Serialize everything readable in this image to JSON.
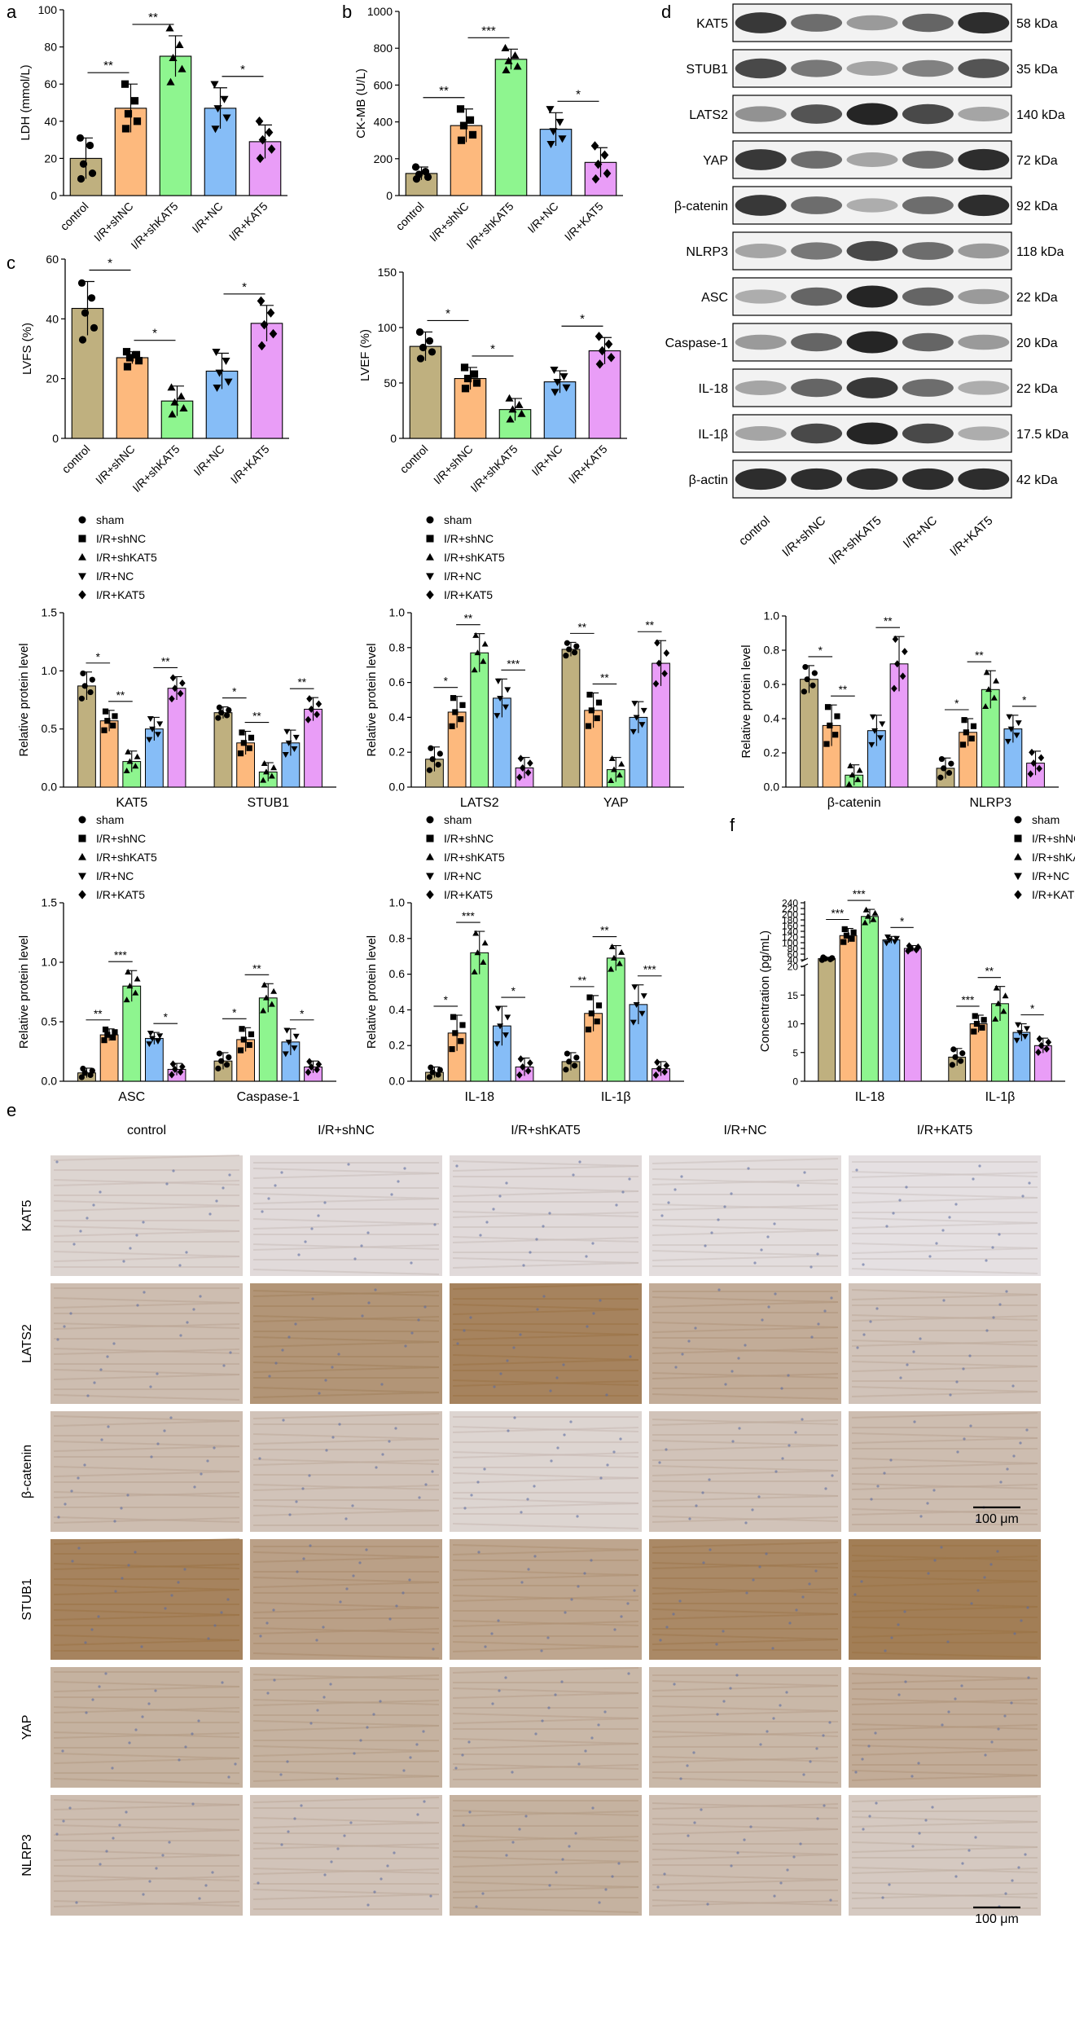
{
  "colors": {
    "control": "#bfb07f",
    "shNC": "#fdb97d",
    "shKAT5": "#8ef58f",
    "NC": "#86bdf7",
    "KAT5": "#e99df7",
    "blot_bg": "#f2f2f2",
    "blot_band": "#1c1c1c",
    "ihc_brown": "#9a7245",
    "ihc_blue": "#cdd2e2"
  },
  "panel_labels": {
    "a": "a",
    "b": "b",
    "c": "c",
    "d": "d",
    "e": "e",
    "f": "f"
  },
  "groups5": [
    "control",
    "I/R+shNC",
    "I/R+shKAT5",
    "I/R+NC",
    "I/R+KAT5"
  ],
  "legend_labels": [
    "sham",
    "I/R+shNC",
    "I/R+shKAT5",
    "I/R+NC",
    "I/R+KAT5"
  ],
  "blot": {
    "proteins": [
      "KAT5",
      "STUB1",
      "LATS2",
      "YAP",
      "β-catenin",
      "NLRP3",
      "ASC",
      "Caspase-1",
      "IL-18",
      "IL-1β",
      "β-actin"
    ],
    "sizes": [
      "58 kDa",
      "35 kDa",
      "140 kDa",
      "72 kDa",
      "92 kDa",
      "118 kDa",
      "22 kDa",
      "20 kDa",
      "22 kDa",
      "17.5 kDa",
      "42 kDa"
    ],
    "intensity": [
      [
        0.85,
        0.55,
        0.3,
        0.6,
        0.9
      ],
      [
        0.75,
        0.5,
        0.25,
        0.45,
        0.7
      ],
      [
        0.35,
        0.7,
        0.95,
        0.75,
        0.25
      ],
      [
        0.85,
        0.55,
        0.25,
        0.55,
        0.9
      ],
      [
        0.85,
        0.55,
        0.2,
        0.55,
        0.9
      ],
      [
        0.25,
        0.5,
        0.75,
        0.55,
        0.3
      ],
      [
        0.2,
        0.6,
        0.95,
        0.6,
        0.3
      ],
      [
        0.3,
        0.6,
        0.95,
        0.6,
        0.3
      ],
      [
        0.25,
        0.6,
        0.85,
        0.55,
        0.2
      ],
      [
        0.25,
        0.75,
        0.95,
        0.75,
        0.2
      ],
      [
        0.9,
        0.9,
        0.9,
        0.9,
        0.9
      ]
    ]
  },
  "ihc": {
    "columns": [
      "control",
      "I/R+shNC",
      "I/R+shKAT5",
      "I/R+NC",
      "I/R+KAT5"
    ],
    "rows": [
      "KAT5",
      "LATS2",
      "β-catenin",
      "STUB1",
      "YAP",
      "NLRP3"
    ],
    "brown_level": [
      [
        0.15,
        0.1,
        0.1,
        0.08,
        0.05
      ],
      [
        0.35,
        0.7,
        0.85,
        0.5,
        0.3
      ],
      [
        0.35,
        0.3,
        0.15,
        0.3,
        0.35
      ],
      [
        0.85,
        0.6,
        0.55,
        0.8,
        0.9
      ],
      [
        0.45,
        0.45,
        0.4,
        0.4,
        0.5
      ],
      [
        0.35,
        0.3,
        0.45,
        0.35,
        0.25
      ]
    ],
    "scale_bar": "100 μm"
  },
  "chart_data": [
    {
      "id": "a",
      "type": "bar",
      "ylabel": "LDH (mmol/L)",
      "ylim": [
        0,
        100
      ],
      "yticks": [
        0,
        20,
        40,
        60,
        80,
        100
      ],
      "categories": [
        "control",
        "I/R+shNC",
        "I/R+shKAT5",
        "I/R+NC",
        "I/R+KAT5"
      ],
      "values": [
        20,
        47,
        75,
        47,
        29
      ],
      "errors": [
        11,
        13,
        11,
        11,
        9
      ],
      "points": [
        [
          31,
          27,
          17,
          12,
          9
        ],
        [
          60,
          51,
          44,
          40,
          36
        ],
        [
          90,
          81,
          74,
          68,
          61
        ],
        [
          60,
          52,
          47,
          42,
          36
        ],
        [
          40,
          34,
          30,
          25,
          20
        ]
      ],
      "sig": [
        {
          "from": 0,
          "to": 1,
          "label": "**"
        },
        {
          "from": 1,
          "to": 2,
          "label": "**"
        },
        {
          "from": 3,
          "to": 4,
          "label": "*"
        }
      ]
    },
    {
      "id": "b",
      "type": "bar",
      "ylabel": "CK-MB (U/L)",
      "ylim": [
        0,
        1000
      ],
      "yticks": [
        0,
        200,
        400,
        600,
        800,
        1000
      ],
      "categories": [
        "control",
        "I/R+shNC",
        "I/R+shKAT5",
        "I/R+NC",
        "I/R+KAT5"
      ],
      "values": [
        120,
        380,
        740,
        360,
        180
      ],
      "errors": [
        35,
        90,
        55,
        90,
        80
      ],
      "points": [
        [
          155,
          130,
          115,
          100,
          90
        ],
        [
          470,
          410,
          380,
          330,
          300
        ],
        [
          800,
          760,
          730,
          700,
          680
        ],
        [
          470,
          400,
          350,
          310,
          280
        ],
        [
          270,
          220,
          170,
          120,
          90
        ]
      ],
      "sig": [
        {
          "from": 0,
          "to": 1,
          "label": "**"
        },
        {
          "from": 1,
          "to": 2,
          "label": "***"
        },
        {
          "from": 3,
          "to": 4,
          "label": "*"
        }
      ]
    },
    {
      "id": "c1",
      "type": "bar",
      "ylabel": "LVFS (%)",
      "ylim": [
        0,
        60
      ],
      "yticks": [
        0,
        20,
        40,
        60
      ],
      "categories": [
        "control",
        "I/R+shNC",
        "I/R+shKAT5",
        "I/R+NC",
        "I/R+KAT5"
      ],
      "values": [
        43.5,
        27,
        12.5,
        22.5,
        38.5
      ],
      "errors": [
        9,
        2,
        5,
        6,
        6
      ],
      "points": [
        [
          52,
          47,
          42,
          37,
          33
        ],
        [
          29,
          28,
          27,
          26,
          24
        ],
        [
          17,
          14,
          12,
          10,
          8
        ],
        [
          29,
          26,
          22,
          19,
          17
        ],
        [
          46,
          42,
          38,
          35,
          31
        ]
      ],
      "sig": [
        {
          "from": 0,
          "to": 1,
          "label": "*"
        },
        {
          "from": 1,
          "to": 2,
          "label": "*"
        },
        {
          "from": 3,
          "to": 4,
          "label": "*"
        }
      ]
    },
    {
      "id": "c2",
      "type": "bar",
      "ylabel": "LVEF (%)",
      "ylim": [
        0,
        150
      ],
      "yticks": [
        0,
        50,
        100,
        150
      ],
      "categories": [
        "control",
        "I/R+shNC",
        "I/R+shKAT5",
        "I/R+NC",
        "I/R+KAT5"
      ],
      "values": [
        83,
        54,
        26,
        51,
        79
      ],
      "errors": [
        13,
        10,
        10,
        10,
        12
      ],
      "points": [
        [
          96,
          88,
          82,
          78,
          72
        ],
        [
          64,
          58,
          54,
          50,
          45
        ],
        [
          36,
          30,
          26,
          22,
          17
        ],
        [
          62,
          56,
          51,
          46,
          42
        ],
        [
          92,
          85,
          79,
          73,
          67
        ]
      ],
      "sig": [
        {
          "from": 0,
          "to": 1,
          "label": "*"
        },
        {
          "from": 1,
          "to": 2,
          "label": "*"
        },
        {
          "from": 3,
          "to": 4,
          "label": "*"
        }
      ]
    },
    {
      "id": "d1",
      "type": "bar",
      "ylabel": "Relative protein level",
      "ylim": [
        0,
        1.5
      ],
      "yticks": [
        0,
        0.5,
        1.0,
        1.5
      ],
      "tick_labels": [
        "0.0",
        "0.5",
        "1.0",
        "1.5"
      ],
      "categories": [
        "KAT5",
        "STUB1"
      ],
      "series": [
        {
          "name": "sham",
          "values": [
            0.87,
            0.64
          ],
          "errors": [
            0.12,
            0.05
          ]
        },
        {
          "name": "I/R+shNC",
          "values": [
            0.57,
            0.38
          ],
          "errors": [
            0.09,
            0.1
          ]
        },
        {
          "name": "I/R+shKAT5",
          "values": [
            0.22,
            0.13
          ],
          "errors": [
            0.09,
            0.08
          ]
        },
        {
          "name": "I/R+NC",
          "values": [
            0.5,
            0.38
          ],
          "errors": [
            0.1,
            0.11
          ]
        },
        {
          "name": "I/R+KAT5",
          "values": [
            0.85,
            0.67
          ],
          "errors": [
            0.1,
            0.1
          ]
        }
      ],
      "sig": [
        [
          {
            "from": 0,
            "to": 1,
            "label": "*"
          },
          {
            "from": 1,
            "to": 2,
            "label": "**"
          },
          {
            "from": 3,
            "to": 4,
            "label": "**"
          }
        ],
        [
          {
            "from": 0,
            "to": 1,
            "label": "*"
          },
          {
            "from": 1,
            "to": 2,
            "label": "**"
          },
          {
            "from": 3,
            "to": 4,
            "label": "**"
          }
        ]
      ]
    },
    {
      "id": "d2",
      "type": "bar",
      "ylabel": "Relative protein level",
      "ylim": [
        0,
        1.0
      ],
      "yticks": [
        0,
        0.2,
        0.4,
        0.6,
        0.8,
        1.0
      ],
      "tick_labels": [
        "0.0",
        "0.2",
        "0.4",
        "0.6",
        "0.8",
        "1.0"
      ],
      "categories": [
        "LATS2",
        "YAP"
      ],
      "series": [
        {
          "name": "sham",
          "values": [
            0.16,
            0.79
          ],
          "errors": [
            0.07,
            0.04
          ]
        },
        {
          "name": "I/R+shNC",
          "values": [
            0.43,
            0.44
          ],
          "errors": [
            0.09,
            0.1
          ]
        },
        {
          "name": "I/R+shKAT5",
          "values": [
            0.77,
            0.1
          ],
          "errors": [
            0.11,
            0.07
          ]
        },
        {
          "name": "I/R+NC",
          "values": [
            0.51,
            0.4
          ],
          "errors": [
            0.11,
            0.09
          ]
        },
        {
          "name": "I/R+KAT5",
          "values": [
            0.11,
            0.71
          ],
          "errors": [
            0.06,
            0.13
          ]
        }
      ],
      "sig": [
        [
          {
            "from": 0,
            "to": 1,
            "label": "*"
          },
          {
            "from": 1,
            "to": 2,
            "label": "**"
          },
          {
            "from": 3,
            "to": 4,
            "label": "***"
          }
        ],
        [
          {
            "from": 0,
            "to": 1,
            "label": "**"
          },
          {
            "from": 1,
            "to": 2,
            "label": "**"
          },
          {
            "from": 3,
            "to": 4,
            "label": "**"
          }
        ]
      ]
    },
    {
      "id": "d3",
      "type": "bar",
      "ylabel": "Relative protein level",
      "ylim": [
        0,
        1.0
      ],
      "yticks": [
        0,
        0.2,
        0.4,
        0.6,
        0.8,
        1.0
      ],
      "tick_labels": [
        "0.0",
        "0.2",
        "0.4",
        "0.6",
        "0.8",
        "1.0"
      ],
      "categories": [
        "β-catenin",
        "NLRP3"
      ],
      "series": [
        {
          "name": "sham",
          "values": [
            0.63,
            0.11
          ],
          "errors": [
            0.08,
            0.06
          ]
        },
        {
          "name": "I/R+shNC",
          "values": [
            0.36,
            0.32
          ],
          "errors": [
            0.12,
            0.08
          ]
        },
        {
          "name": "I/R+shKAT5",
          "values": [
            0.07,
            0.57
          ],
          "errors": [
            0.06,
            0.11
          ]
        },
        {
          "name": "I/R+NC",
          "values": [
            0.33,
            0.34
          ],
          "errors": [
            0.09,
            0.08
          ]
        },
        {
          "name": "I/R+KAT5",
          "values": [
            0.72,
            0.14
          ],
          "errors": [
            0.16,
            0.07
          ]
        }
      ],
      "sig": [
        [
          {
            "from": 0,
            "to": 1,
            "label": "*"
          },
          {
            "from": 1,
            "to": 2,
            "label": "**"
          },
          {
            "from": 3,
            "to": 4,
            "label": "**"
          }
        ],
        [
          {
            "from": 0,
            "to": 1,
            "label": "*"
          },
          {
            "from": 1,
            "to": 2,
            "label": "**"
          },
          {
            "from": 3,
            "to": 4,
            "label": "*"
          }
        ]
      ]
    },
    {
      "id": "d4",
      "type": "bar",
      "ylabel": "Relative protein level",
      "ylim": [
        0,
        1.5
      ],
      "yticks": [
        0,
        0.5,
        1.0,
        1.5
      ],
      "tick_labels": [
        "0.0",
        "0.5",
        "1.0",
        "1.5"
      ],
      "categories": [
        "ASC",
        "Caspase-1"
      ],
      "series": [
        {
          "name": "sham",
          "values": [
            0.07,
            0.17
          ],
          "errors": [
            0.04,
            0.07
          ]
        },
        {
          "name": "I/R+shNC",
          "values": [
            0.39,
            0.35
          ],
          "errors": [
            0.05,
            0.1
          ]
        },
        {
          "name": "I/R+shKAT5",
          "values": [
            0.8,
            0.7
          ],
          "errors": [
            0.13,
            0.12
          ]
        },
        {
          "name": "I/R+NC",
          "values": [
            0.36,
            0.33
          ],
          "errors": [
            0.05,
            0.11
          ]
        },
        {
          "name": "I/R+KAT5",
          "values": [
            0.1,
            0.12
          ],
          "errors": [
            0.05,
            0.05
          ]
        }
      ],
      "sig": [
        [
          {
            "from": 0,
            "to": 1,
            "label": "**"
          },
          {
            "from": 1,
            "to": 2,
            "label": "***"
          },
          {
            "from": 3,
            "to": 4,
            "label": "*"
          }
        ],
        [
          {
            "from": 0,
            "to": 1,
            "label": "*"
          },
          {
            "from": 1,
            "to": 2,
            "label": "**"
          },
          {
            "from": 3,
            "to": 4,
            "label": "*"
          }
        ]
      ]
    },
    {
      "id": "d5",
      "type": "bar",
      "ylabel": "Relative protein level",
      "ylim": [
        0,
        1.0
      ],
      "yticks": [
        0,
        0.2,
        0.4,
        0.6,
        0.8,
        1.0
      ],
      "tick_labels": [
        "0.0",
        "0.2",
        "0.4",
        "0.6",
        "0.8",
        "1.0"
      ],
      "categories": [
        "IL-18",
        "IL-1β"
      ],
      "series": [
        {
          "name": "sham",
          "values": [
            0.05,
            0.11
          ],
          "errors": [
            0.03,
            0.05
          ]
        },
        {
          "name": "I/R+shNC",
          "values": [
            0.27,
            0.38
          ],
          "errors": [
            0.1,
            0.1
          ]
        },
        {
          "name": "I/R+shKAT5",
          "values": [
            0.72,
            0.69
          ],
          "errors": [
            0.12,
            0.07
          ]
        },
        {
          "name": "I/R+NC",
          "values": [
            0.31,
            0.43
          ],
          "errors": [
            0.11,
            0.11
          ]
        },
        {
          "name": "I/R+KAT5",
          "values": [
            0.08,
            0.07
          ],
          "errors": [
            0.05,
            0.04
          ]
        }
      ],
      "sig": [
        [
          {
            "from": 0,
            "to": 1,
            "label": "*"
          },
          {
            "from": 1,
            "to": 2,
            "label": "***"
          },
          {
            "from": 3,
            "to": 4,
            "label": "*"
          }
        ],
        [
          {
            "from": 0,
            "to": 1,
            "label": "**"
          },
          {
            "from": 1,
            "to": 2,
            "label": "**"
          },
          {
            "from": 3,
            "to": 4,
            "label": "***"
          }
        ]
      ]
    },
    {
      "id": "f",
      "type": "bar",
      "ylabel": "Concentration (pg/mL)",
      "axis_break": true,
      "yticks": [
        0,
        5,
        10,
        15,
        20,
        40,
        60,
        80,
        100,
        120,
        140,
        160,
        180,
        200,
        220,
        240
      ],
      "categories": [
        "IL-18",
        "IL-1β"
      ],
      "series": [
        {
          "name": "sham",
          "values": [
            44,
            4.2
          ],
          "errors": [
            5,
            1.5
          ]
        },
        {
          "name": "I/R+shNC",
          "values": [
            125,
            10
          ],
          "errors": [
            25,
            1.5
          ]
        },
        {
          "name": "I/R+shKAT5",
          "values": [
            192,
            13.5
          ],
          "errors": [
            25,
            3
          ]
        },
        {
          "name": "I/R+NC",
          "values": [
            110,
            8.5
          ],
          "errors": [
            12,
            1.5
          ]
        },
        {
          "name": "I/R+KAT5",
          "values": [
            80,
            6.2
          ],
          "errors": [
            10,
            1.3
          ]
        }
      ],
      "sig": [
        [
          {
            "from": 0,
            "to": 1,
            "label": "***"
          },
          {
            "from": 1,
            "to": 2,
            "label": "***"
          },
          {
            "from": 3,
            "to": 4,
            "label": "*"
          }
        ],
        [
          {
            "from": 0,
            "to": 1,
            "label": "***"
          },
          {
            "from": 1,
            "to": 2,
            "label": "**"
          },
          {
            "from": 3,
            "to": 4,
            "label": "*"
          }
        ]
      ]
    }
  ]
}
